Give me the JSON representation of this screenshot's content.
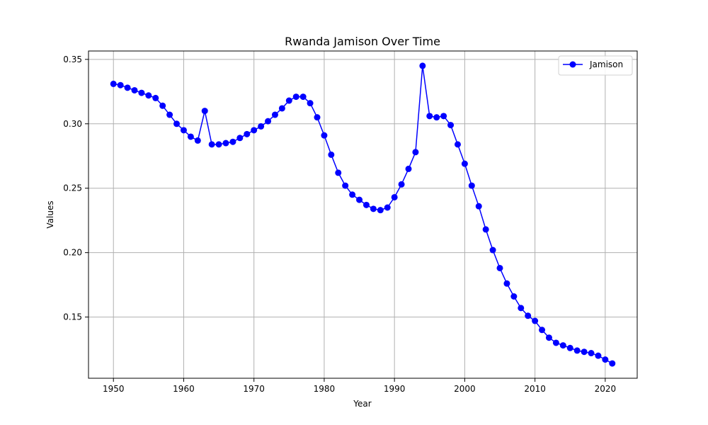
{
  "chart_data": {
    "type": "line",
    "title": "Rwanda Jamison Over Time",
    "xlabel": "Year",
    "ylabel": "Values",
    "xlim": [
      1946.45,
      2024.55
    ],
    "ylim": [
      0.1025,
      0.3565
    ],
    "xticks": [
      1950,
      1960,
      1970,
      1980,
      1990,
      2000,
      2010,
      2020
    ],
    "xtick_labels": [
      "1950",
      "1960",
      "1970",
      "1980",
      "1990",
      "2000",
      "2010",
      "2020"
    ],
    "yticks": [
      0.15,
      0.2,
      0.25,
      0.3,
      0.35
    ],
    "ytick_labels": [
      "0.15",
      "0.20",
      "0.25",
      "0.30",
      "0.35"
    ],
    "grid": true,
    "legend_position": "top-right",
    "series": [
      {
        "name": "Jamison",
        "color": "#0000ff",
        "marker": "circle",
        "x": [
          1950,
          1951,
          1952,
          1953,
          1954,
          1955,
          1956,
          1957,
          1958,
          1959,
          1960,
          1961,
          1962,
          1963,
          1964,
          1965,
          1966,
          1967,
          1968,
          1969,
          1970,
          1971,
          1972,
          1973,
          1974,
          1975,
          1976,
          1977,
          1978,
          1979,
          1980,
          1981,
          1982,
          1983,
          1984,
          1985,
          1986,
          1987,
          1988,
          1989,
          1990,
          1991,
          1992,
          1993,
          1994,
          1995,
          1996,
          1997,
          1998,
          1999,
          2000,
          2001,
          2002,
          2003,
          2004,
          2005,
          2006,
          2007,
          2008,
          2009,
          2010,
          2011,
          2012,
          2013,
          2014,
          2015,
          2016,
          2017,
          2018,
          2019,
          2020,
          2021
        ],
        "y": [
          0.331,
          0.33,
          0.328,
          0.326,
          0.324,
          0.322,
          0.32,
          0.314,
          0.307,
          0.3,
          0.295,
          0.29,
          0.287,
          0.31,
          0.284,
          0.284,
          0.285,
          0.286,
          0.289,
          0.292,
          0.295,
          0.298,
          0.302,
          0.307,
          0.312,
          0.318,
          0.321,
          0.321,
          0.316,
          0.305,
          0.291,
          0.276,
          0.262,
          0.252,
          0.245,
          0.241,
          0.237,
          0.234,
          0.233,
          0.235,
          0.243,
          0.253,
          0.265,
          0.278,
          0.345,
          0.306,
          0.305,
          0.306,
          0.299,
          0.284,
          0.269,
          0.252,
          0.236,
          0.218,
          0.202,
          0.188,
          0.176,
          0.166,
          0.157,
          0.151,
          0.147,
          0.14,
          0.134,
          0.13,
          0.128,
          0.126,
          0.124,
          0.123,
          0.122,
          0.12,
          0.117,
          0.114
        ]
      }
    ]
  }
}
